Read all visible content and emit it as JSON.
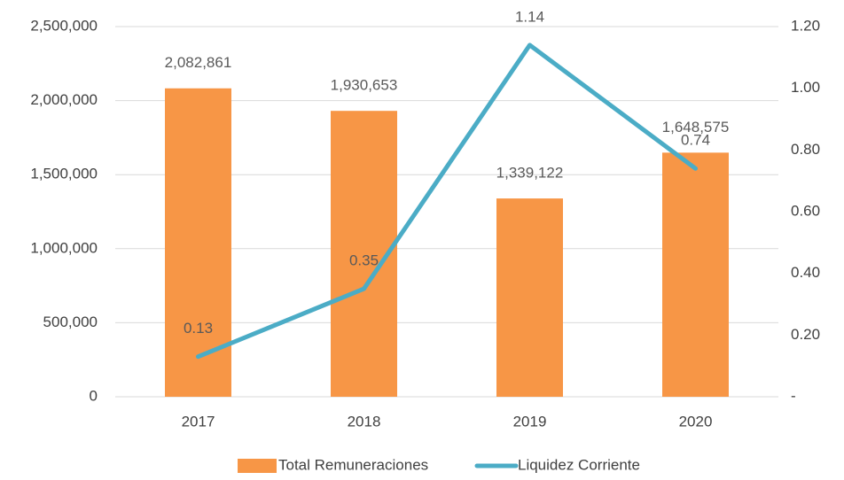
{
  "chart_data": {
    "type": "bar",
    "categories": [
      "2017",
      "2018",
      "2019",
      "2020"
    ],
    "series": [
      {
        "name": "Total Remuneraciones",
        "color": "#f79646",
        "values": [
          2082861,
          1930653,
          1339122,
          1648575
        ],
        "value_labels": [
          "2,082,861",
          "1,930,653",
          "1,339,122",
          "1,648,575"
        ]
      },
      {
        "name": "Liquidez Corriente",
        "color": "#4bacc6",
        "type": "line",
        "axis": "y2",
        "values": [
          0.13,
          0.35,
          1.14,
          0.74
        ]
      }
    ],
    "ylim": [
      0,
      2500000
    ],
    "yticks": [
      0,
      {
        "value": 500000,
        "label": "500,000"
      },
      {
        "value": 1000000,
        "label": "1,000,000"
      },
      {
        "value": 1500000,
        "label": "1,500,000"
      },
      {
        "value": 2000000,
        "label": "2,000,000"
      },
      {
        "value": 2500000,
        "label": "2,500,000"
      }
    ],
    "y2lim": [
      0,
      1.2
    ],
    "y2ticks": [
      {
        "value": 0,
        "label": "-"
      },
      {
        "value": 0.2,
        "label": "0.20"
      },
      {
        "value": 0.4,
        "label": "0.40"
      },
      {
        "value": 0.6,
        "label": "0.60"
      },
      {
        "value": 0.8,
        "label": "0.80"
      },
      {
        "value": 1.0,
        "label": "1.00"
      },
      {
        "value": 1.2,
        "label": "1.20"
      }
    ],
    "grid": true,
    "legend": "bottom"
  }
}
